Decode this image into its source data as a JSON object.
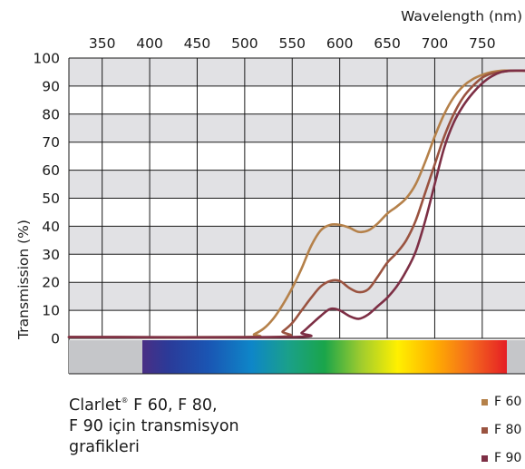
{
  "chart_data": {
    "type": "line",
    "xlabel": "Wavelength (nm)",
    "ylabel": "Transmission (%)",
    "xlim": [
      315,
      795
    ],
    "ylim": [
      0,
      100
    ],
    "x_ticks": [
      350,
      400,
      450,
      500,
      550,
      600,
      650,
      700,
      750
    ],
    "y_ticks": [
      0,
      10,
      20,
      30,
      40,
      50,
      60,
      70,
      80,
      90,
      100
    ],
    "grid": true,
    "legend_position": "bottom-right",
    "series": [
      {
        "name": "F 60",
        "color": "#b5814a",
        "x": [
          315,
          500,
          510,
          520,
          530,
          540,
          550,
          560,
          570,
          580,
          590,
          600,
          610,
          620,
          630,
          640,
          650,
          660,
          670,
          680,
          690,
          700,
          710,
          720,
          730,
          740,
          750,
          760,
          770,
          780,
          795
        ],
        "y": [
          0.5,
          0.5,
          1.5,
          3.5,
          7,
          12,
          18,
          25,
          33,
          38.5,
          40.5,
          40.5,
          39.5,
          38,
          38.5,
          41,
          44.5,
          47,
          50,
          55,
          63,
          72,
          80,
          86,
          90,
          92.5,
          94,
          95,
          95.5,
          95.5,
          95.5
        ]
      },
      {
        "name": "F 80",
        "color": "#9a5340",
        "x": [
          315,
          530,
          540,
          550,
          560,
          570,
          580,
          590,
          600,
          610,
          620,
          630,
          640,
          650,
          660,
          670,
          680,
          690,
          700,
          710,
          720,
          730,
          740,
          750,
          760,
          770,
          780,
          795
        ],
        "y": [
          0.5,
          0.5,
          2.5,
          5.5,
          10,
          14.5,
          18.5,
          20.5,
          20.5,
          18,
          16.5,
          17.5,
          22,
          27,
          30.5,
          35,
          42,
          52,
          62,
          72,
          80,
          86,
          90,
          93,
          94.5,
          95,
          95.5,
          95.5
        ]
      },
      {
        "name": "F 90",
        "color": "#7d2f45",
        "x": [
          315,
          550,
          560,
          570,
          580,
          590,
          600,
          610,
          620,
          630,
          640,
          650,
          660,
          670,
          680,
          690,
          700,
          710,
          720,
          730,
          740,
          750,
          760,
          770,
          780,
          795
        ],
        "y": [
          0.5,
          0.5,
          2,
          5,
          8,
          10.5,
          10,
          8,
          7,
          8.5,
          11.5,
          14.5,
          18.5,
          24,
          31,
          42,
          55,
          68,
          77,
          83,
          87.5,
          91,
          93.5,
          95,
          95.5,
          95.5
        ]
      }
    ]
  },
  "caption": {
    "brand": "Clarlet",
    "brand_mark": "®",
    "line1_rest": " F 60, F 80,",
    "line2": "F 90 için transmisyon",
    "line3": "grafikleri"
  },
  "colors": {
    "band": "#e1e1e4",
    "grid": "#1a1a1a",
    "spectrum_side": "#c5c6c9"
  }
}
